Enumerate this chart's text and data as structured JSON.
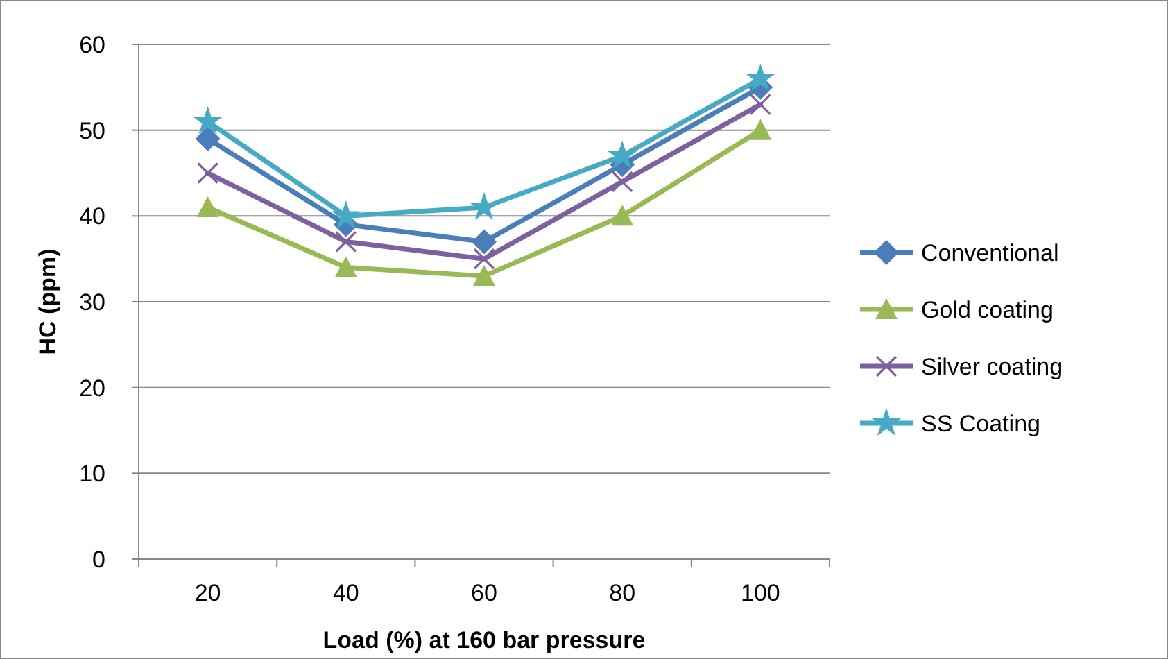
{
  "chart_data": {
    "type": "line",
    "xlabel": "Load (%) at 160 bar pressure",
    "ylabel": "HC (ppm)",
    "categories": [
      "20",
      "40",
      "60",
      "80",
      "100"
    ],
    "series": [
      {
        "name": "Conventional",
        "color": "#4a7ebb",
        "marker": "diamond",
        "values": [
          49,
          39,
          37,
          46,
          55
        ]
      },
      {
        "name": "Gold coating",
        "color": "#98b954",
        "marker": "triangle",
        "values": [
          41,
          34,
          33,
          40,
          50
        ]
      },
      {
        "name": "Silver coating",
        "color": "#7d60a0",
        "marker": "cross",
        "values": [
          45,
          37,
          35,
          44,
          53
        ]
      },
      {
        "name": "SS Coating",
        "color": "#46aac5",
        "marker": "star",
        "values": [
          51,
          40,
          41,
          47,
          56
        ]
      }
    ],
    "ylim": [
      0,
      60
    ],
    "yticks": [
      0,
      10,
      20,
      30,
      40,
      50,
      60
    ],
    "grid": "y",
    "legend": "right"
  }
}
